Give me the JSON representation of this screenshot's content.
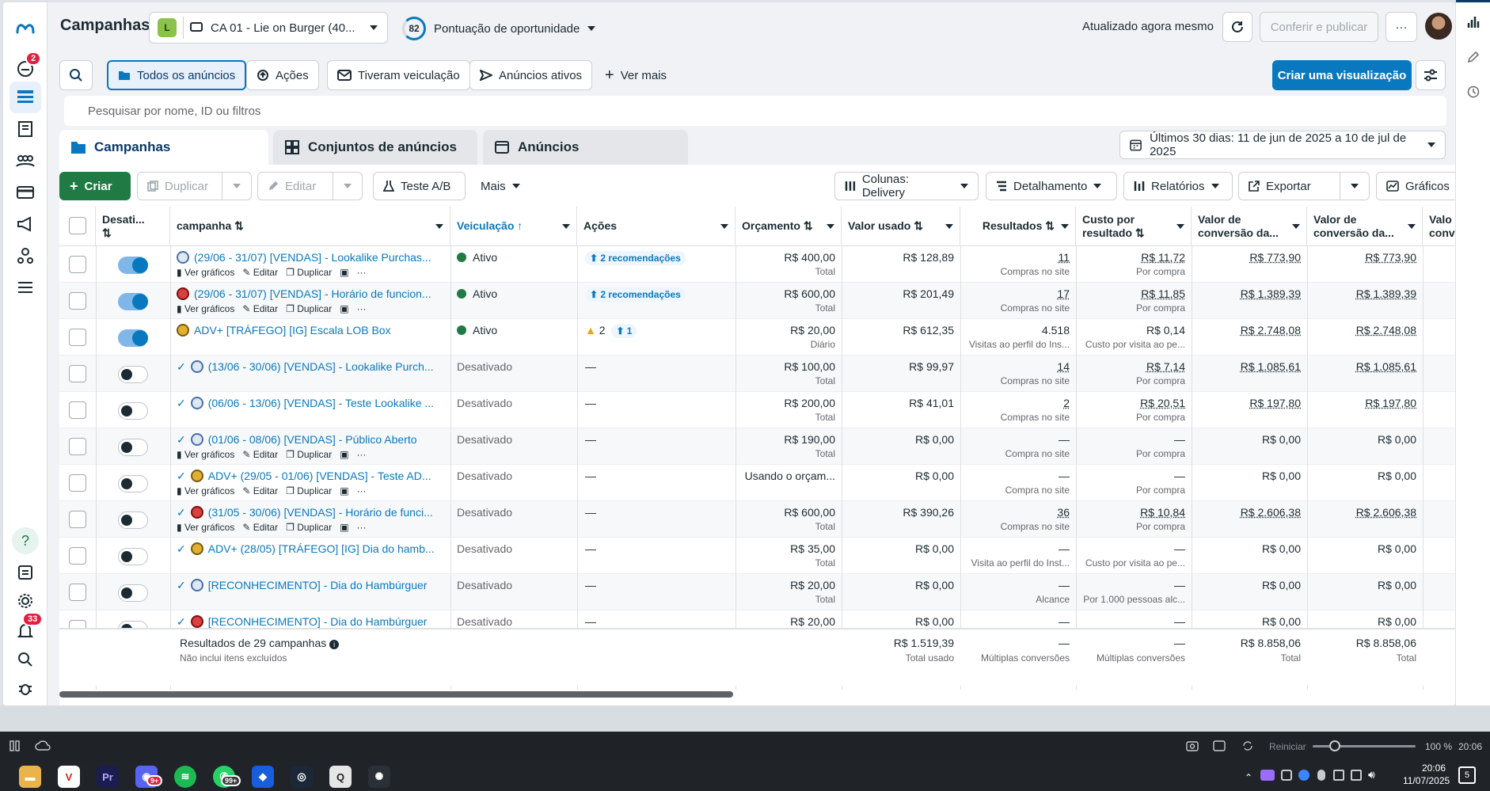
{
  "header": {
    "title": "Campanhas",
    "account_badge": "L",
    "account_name": "CA 01 - Lie on Burger (40...",
    "score_value": "82",
    "score_label": "Pontuação de oportunidade",
    "updated": "Atualizado agora mesmo",
    "publish": "Conferir e publicar",
    "more": "···"
  },
  "leftnav": {
    "badge_top": "2",
    "badge_bottom": "33"
  },
  "filters": {
    "all_ads": "Todos os anúncios",
    "actions": "Ações",
    "had_delivery": "Tiveram veiculação",
    "active_ads": "Anúncios ativos",
    "see_more": "Ver mais",
    "create_view": "Criar uma visualização",
    "search_placeholder": "Pesquisar por nome, ID ou filtros"
  },
  "tabs": {
    "campaigns": "Campanhas",
    "adsets": "Conjuntos de anúncios",
    "ads": "Anúncios",
    "date_range": "Últimos 30 dias: 11 de jun de 2025 a 10 de jul de 2025"
  },
  "toolbar": {
    "create": "Criar",
    "duplicate": "Duplicar",
    "edit": "Editar",
    "ab_test": "Teste A/B",
    "more": "Mais",
    "columns": "Colunas: Delivery",
    "breakdown": "Detalhamento",
    "reports": "Relatórios",
    "export": "Exportar",
    "charts": "Gráficos"
  },
  "table": {
    "headers": {
      "off_on": "Desati...",
      "campaign": "campanha",
      "delivery": "Veiculação",
      "actions": "Ações",
      "budget": "Orçamento",
      "spent": "Valor usado",
      "results": "Resultados",
      "cpr": "Custo por resultado",
      "conv1": "Valor de conversão da...",
      "conv2": "Valor de conversão da...",
      "conv3": "Valo conv"
    },
    "row_actions": {
      "charts": "Ver gráficos",
      "edit": "Editar",
      "duplicate": "Duplicar",
      "more": "···"
    },
    "rows": [
      {
        "name": "(29/06 - 31/07) [VENDAS] - Lookalike Purchas...",
        "delivery": "Ativo",
        "actions": "2 recomendações",
        "budget": "R$ 400,00",
        "budget_sub": "Total",
        "spent": "R$ 128,89",
        "results": "11",
        "results_sub": "Compras no site",
        "cpr": "R$ 11,72",
        "cpr_sub": "Por compra",
        "conv1": "R$ 773,90",
        "conv2": "R$ 773,90"
      },
      {
        "name": "(29/06 - 31/07) [VENDAS] - Horário de funcion...",
        "delivery": "Ativo",
        "actions": "2 recomendações",
        "budget": "R$ 600,00",
        "budget_sub": "Total",
        "spent": "R$ 201,49",
        "results": "17",
        "results_sub": "Compras no site",
        "cpr": "R$ 11,85",
        "cpr_sub": "Por compra",
        "conv1": "R$ 1.389,39",
        "conv2": "R$ 1.389,39"
      },
      {
        "name": "ADV+ [TRÁFEGO] [IG] Escala LOB Box",
        "delivery": "Ativo",
        "actions_warn": "2",
        "actions_rec": "1",
        "budget": "R$ 20,00",
        "budget_sub": "Diário",
        "spent": "R$ 612,35",
        "results": "4.518",
        "results_sub": "Visitas ao perfil do Ins...",
        "cpr": "R$ 0,14",
        "cpr_sub": "Custo por visita ao pe...",
        "conv1": "R$ 2.748,08",
        "conv2": "R$ 2.748,08"
      },
      {
        "name": "(13/06 - 30/06) [VENDAS] - Lookalike Purch...",
        "delivery": "Desativado",
        "actions": "—",
        "budget": "R$ 100,00",
        "budget_sub": "Total",
        "spent": "R$ 99,97",
        "results": "14",
        "results_sub": "Compras no site",
        "cpr": "R$ 7,14",
        "cpr_sub": "Por compra",
        "conv1": "R$ 1.085,61",
        "conv2": "R$ 1.085,61"
      },
      {
        "name": "(06/06 - 13/06) [VENDAS] - Teste Lookalike ...",
        "delivery": "Desativado",
        "actions": "—",
        "budget": "R$ 200,00",
        "budget_sub": "Total",
        "spent": "R$ 41,01",
        "results": "2",
        "results_sub": "Compras no site",
        "cpr": "R$ 20,51",
        "cpr_sub": "Por compra",
        "conv1": "R$ 197,80",
        "conv2": "R$ 197,80"
      },
      {
        "name": "(01/06 - 08/06) [VENDAS] - Público Aberto",
        "delivery": "Desativado",
        "actions": "—",
        "budget": "R$ 190,00",
        "budget_sub": "Total",
        "spent": "R$ 0,00",
        "results": "—",
        "results_sub": "Compra no site",
        "cpr": "—",
        "cpr_sub": "Por compra",
        "conv1": "R$ 0,00",
        "conv2": "R$ 0,00"
      },
      {
        "name": "ADV+ (29/05 - 01/06) [VENDAS] - Teste AD...",
        "delivery": "Desativado",
        "actions": "—",
        "budget": "Usando o orçam...",
        "budget_sub": "",
        "spent": "R$ 0,00",
        "results": "—",
        "results_sub": "Compra no site",
        "cpr": "—",
        "cpr_sub": "Por compra",
        "conv1": "R$ 0,00",
        "conv2": "R$ 0,00"
      },
      {
        "name": "(31/05 - 30/06) [VENDAS] - Horário de funci...",
        "delivery": "Desativado",
        "actions": "—",
        "budget": "R$ 600,00",
        "budget_sub": "Total",
        "spent": "R$ 390,26",
        "results": "36",
        "results_sub": "Compras no site",
        "cpr": "R$ 10,84",
        "cpr_sub": "Por compra",
        "conv1": "R$ 2.606,38",
        "conv2": "R$ 2.606,38"
      },
      {
        "name": "ADV+ (28/05) [TRÁFEGO] [IG] Dia do hamb...",
        "delivery": "Desativado",
        "actions": "—",
        "budget": "R$ 35,00",
        "budget_sub": "Total",
        "spent": "R$ 0,00",
        "results": "—",
        "results_sub": "Visita ao perfil do Inst...",
        "cpr": "—",
        "cpr_sub": "Custo por visita ao pe...",
        "conv1": "R$ 0,00",
        "conv2": "R$ 0,00"
      },
      {
        "name": "[RECONHECIMENTO] - Dia do Hambúrguer",
        "delivery": "Desativado",
        "actions": "—",
        "budget": "R$ 20,00",
        "budget_sub": "Total",
        "spent": "R$ 0,00",
        "results": "—",
        "results_sub": "Alcance",
        "cpr": "—",
        "cpr_sub": "Por 1.000 pessoas alc...",
        "conv1": "R$ 0,00",
        "conv2": "R$ 0,00"
      },
      {
        "name": "[RECONHECIMENTO] - Dia do Hambúrguer",
        "delivery": "Desativado",
        "actions": "—",
        "budget": "R$ 20,00",
        "budget_sub": "",
        "spent": "R$ 0,00",
        "results": "—",
        "results_sub": "",
        "cpr": "—",
        "cpr_sub": "",
        "conv1": "R$ 0,00",
        "conv2": "R$ 0,00"
      }
    ],
    "footer": {
      "results": "Resultados de 29 campanhas",
      "note": "Não inclui itens excluídos",
      "spent": "R$ 1.519,39",
      "spent_sub": "Total usado",
      "results_val": "—",
      "results_sub": "Múltiplas conversões",
      "cpr_val": "—",
      "cpr_sub": "Múltiplas conversões",
      "conv1": "R$ 8.858,06",
      "conv1_sub": "Total",
      "conv2": "R$ 8.858,06",
      "conv2_sub": "Total"
    }
  },
  "statusbar": {
    "reset": "Reiniciar",
    "zoom": "100 %",
    "time_small": "20:06"
  },
  "taskbar": {
    "badge1": "9+",
    "badge2": "99+",
    "clock": "20:06",
    "date": "11/07/2025",
    "notif": "5"
  },
  "colors": {
    "accent": "#0a78be",
    "create_green": "#1f7a43",
    "active_dot": "#1f7a43",
    "warn": "#f0a500"
  }
}
